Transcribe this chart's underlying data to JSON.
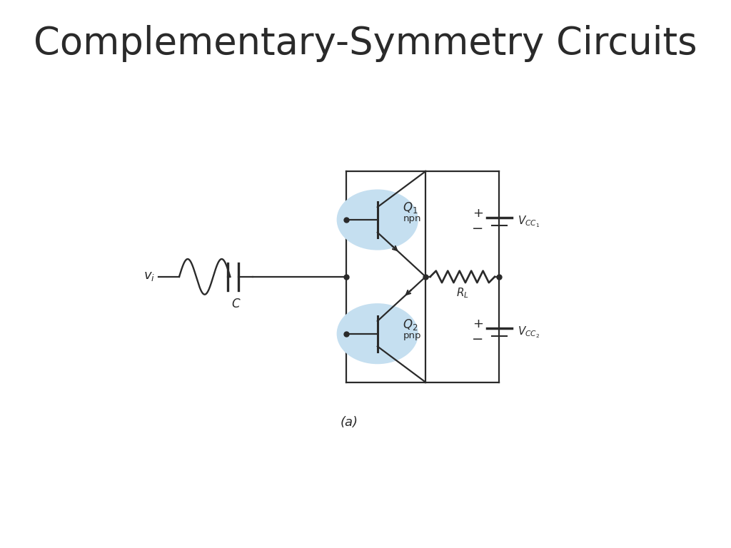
{
  "title": "Complementary-Symmetry Circuits",
  "title_fontsize": 38,
  "caption": "(a)",
  "background_color": "#ffffff",
  "transistor_circle_color": "#c5dff0",
  "line_color": "#2a2a2a",
  "text_color": "#2a2a2a",
  "lw": 1.6
}
